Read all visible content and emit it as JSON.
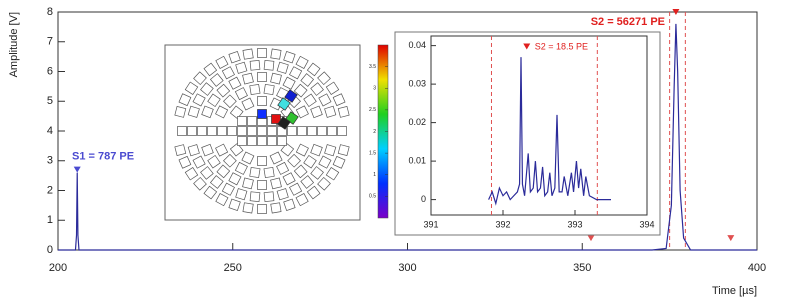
{
  "chart_data": [
    {
      "type": "line",
      "xlabel": "Time [µs]",
      "ylabel": "Amplitude [V]",
      "x": [
        200,
        205,
        205.3,
        205.5,
        205.7,
        206,
        370,
        374,
        375.5,
        376.3,
        376.8,
        377.3,
        378,
        379,
        381,
        400
      ],
      "values": [
        0,
        0,
        0.5,
        2.6,
        0.5,
        0,
        0,
        0.05,
        1.5,
        5.5,
        7.6,
        6,
        2,
        0.4,
        0,
        0
      ],
      "color": "#2b2b9a",
      "xlim": [
        200,
        400
      ],
      "xticks": [
        200,
        250,
        300,
        350,
        400
      ],
      "ylim": [
        0,
        8
      ],
      "yticks": [
        0,
        1,
        2,
        3,
        4,
        5,
        6,
        7,
        8
      ],
      "annotations": [
        {
          "text": "S1 = 787 PE",
          "x": 205.5,
          "y": 2.6,
          "color": "#4a4ad0"
        },
        {
          "text": "S2 = 56271 PE",
          "x": 376.8,
          "y": 7.9,
          "color": "#e0201f"
        }
      ],
      "vlines": [
        375,
        379.5
      ],
      "markers": [
        {
          "x": 352.5,
          "y": 0.3
        },
        {
          "x": 392.5,
          "y": 0.3
        }
      ],
      "marker_color": "#e05050"
    },
    {
      "type": "line",
      "x": [
        391.8,
        391.85,
        391.9,
        391.95,
        392.0,
        392.05,
        392.1,
        392.15,
        392.2,
        392.23,
        392.25,
        392.27,
        392.3,
        392.35,
        392.38,
        392.42,
        392.45,
        392.48,
        392.52,
        392.55,
        392.58,
        392.62,
        392.65,
        392.68,
        392.72,
        392.75,
        392.78,
        392.82,
        392.85,
        392.9,
        392.95,
        392.98,
        393.02,
        393.05,
        393.08,
        393.12,
        393.15,
        393.2,
        393.3,
        393.4,
        393.5
      ],
      "values": [
        0,
        0.002,
        -0.001,
        0.003,
        0.001,
        0.002,
        0,
        0.001,
        0.002,
        0.004,
        0.037,
        0.004,
        0.001,
        0.012,
        0.002,
        0.003,
        0.01,
        0.002,
        0.003,
        0.0085,
        0.001,
        0.002,
        0.007,
        0.001,
        0.003,
        0.022,
        0.002,
        0.002,
        0.006,
        0.001,
        0.007,
        0.002,
        0.01,
        0.003,
        0.008,
        0.001,
        0.006,
        0.001,
        0,
        0,
        0
      ],
      "color": "#2b2b9a",
      "xlim": [
        391,
        394
      ],
      "xticks": [
        391,
        392,
        393,
        394
      ],
      "ylim": [
        -0.004,
        0.0425
      ],
      "yticks": [
        0,
        0.01,
        0.02,
        0.03,
        0.04
      ],
      "annotations": [
        {
          "text": "S2 = 18.5 PE",
          "x": 392.33,
          "y": 0.039,
          "color": "#e0201f"
        }
      ],
      "vlines": [
        391.84,
        393.31
      ],
      "marker_color": "#e05050"
    },
    {
      "type": "colorbar",
      "lim": [
        0,
        4
      ],
      "ticks": [
        0.5,
        1,
        1.5,
        2,
        2.5,
        3,
        3.5
      ]
    }
  ]
}
